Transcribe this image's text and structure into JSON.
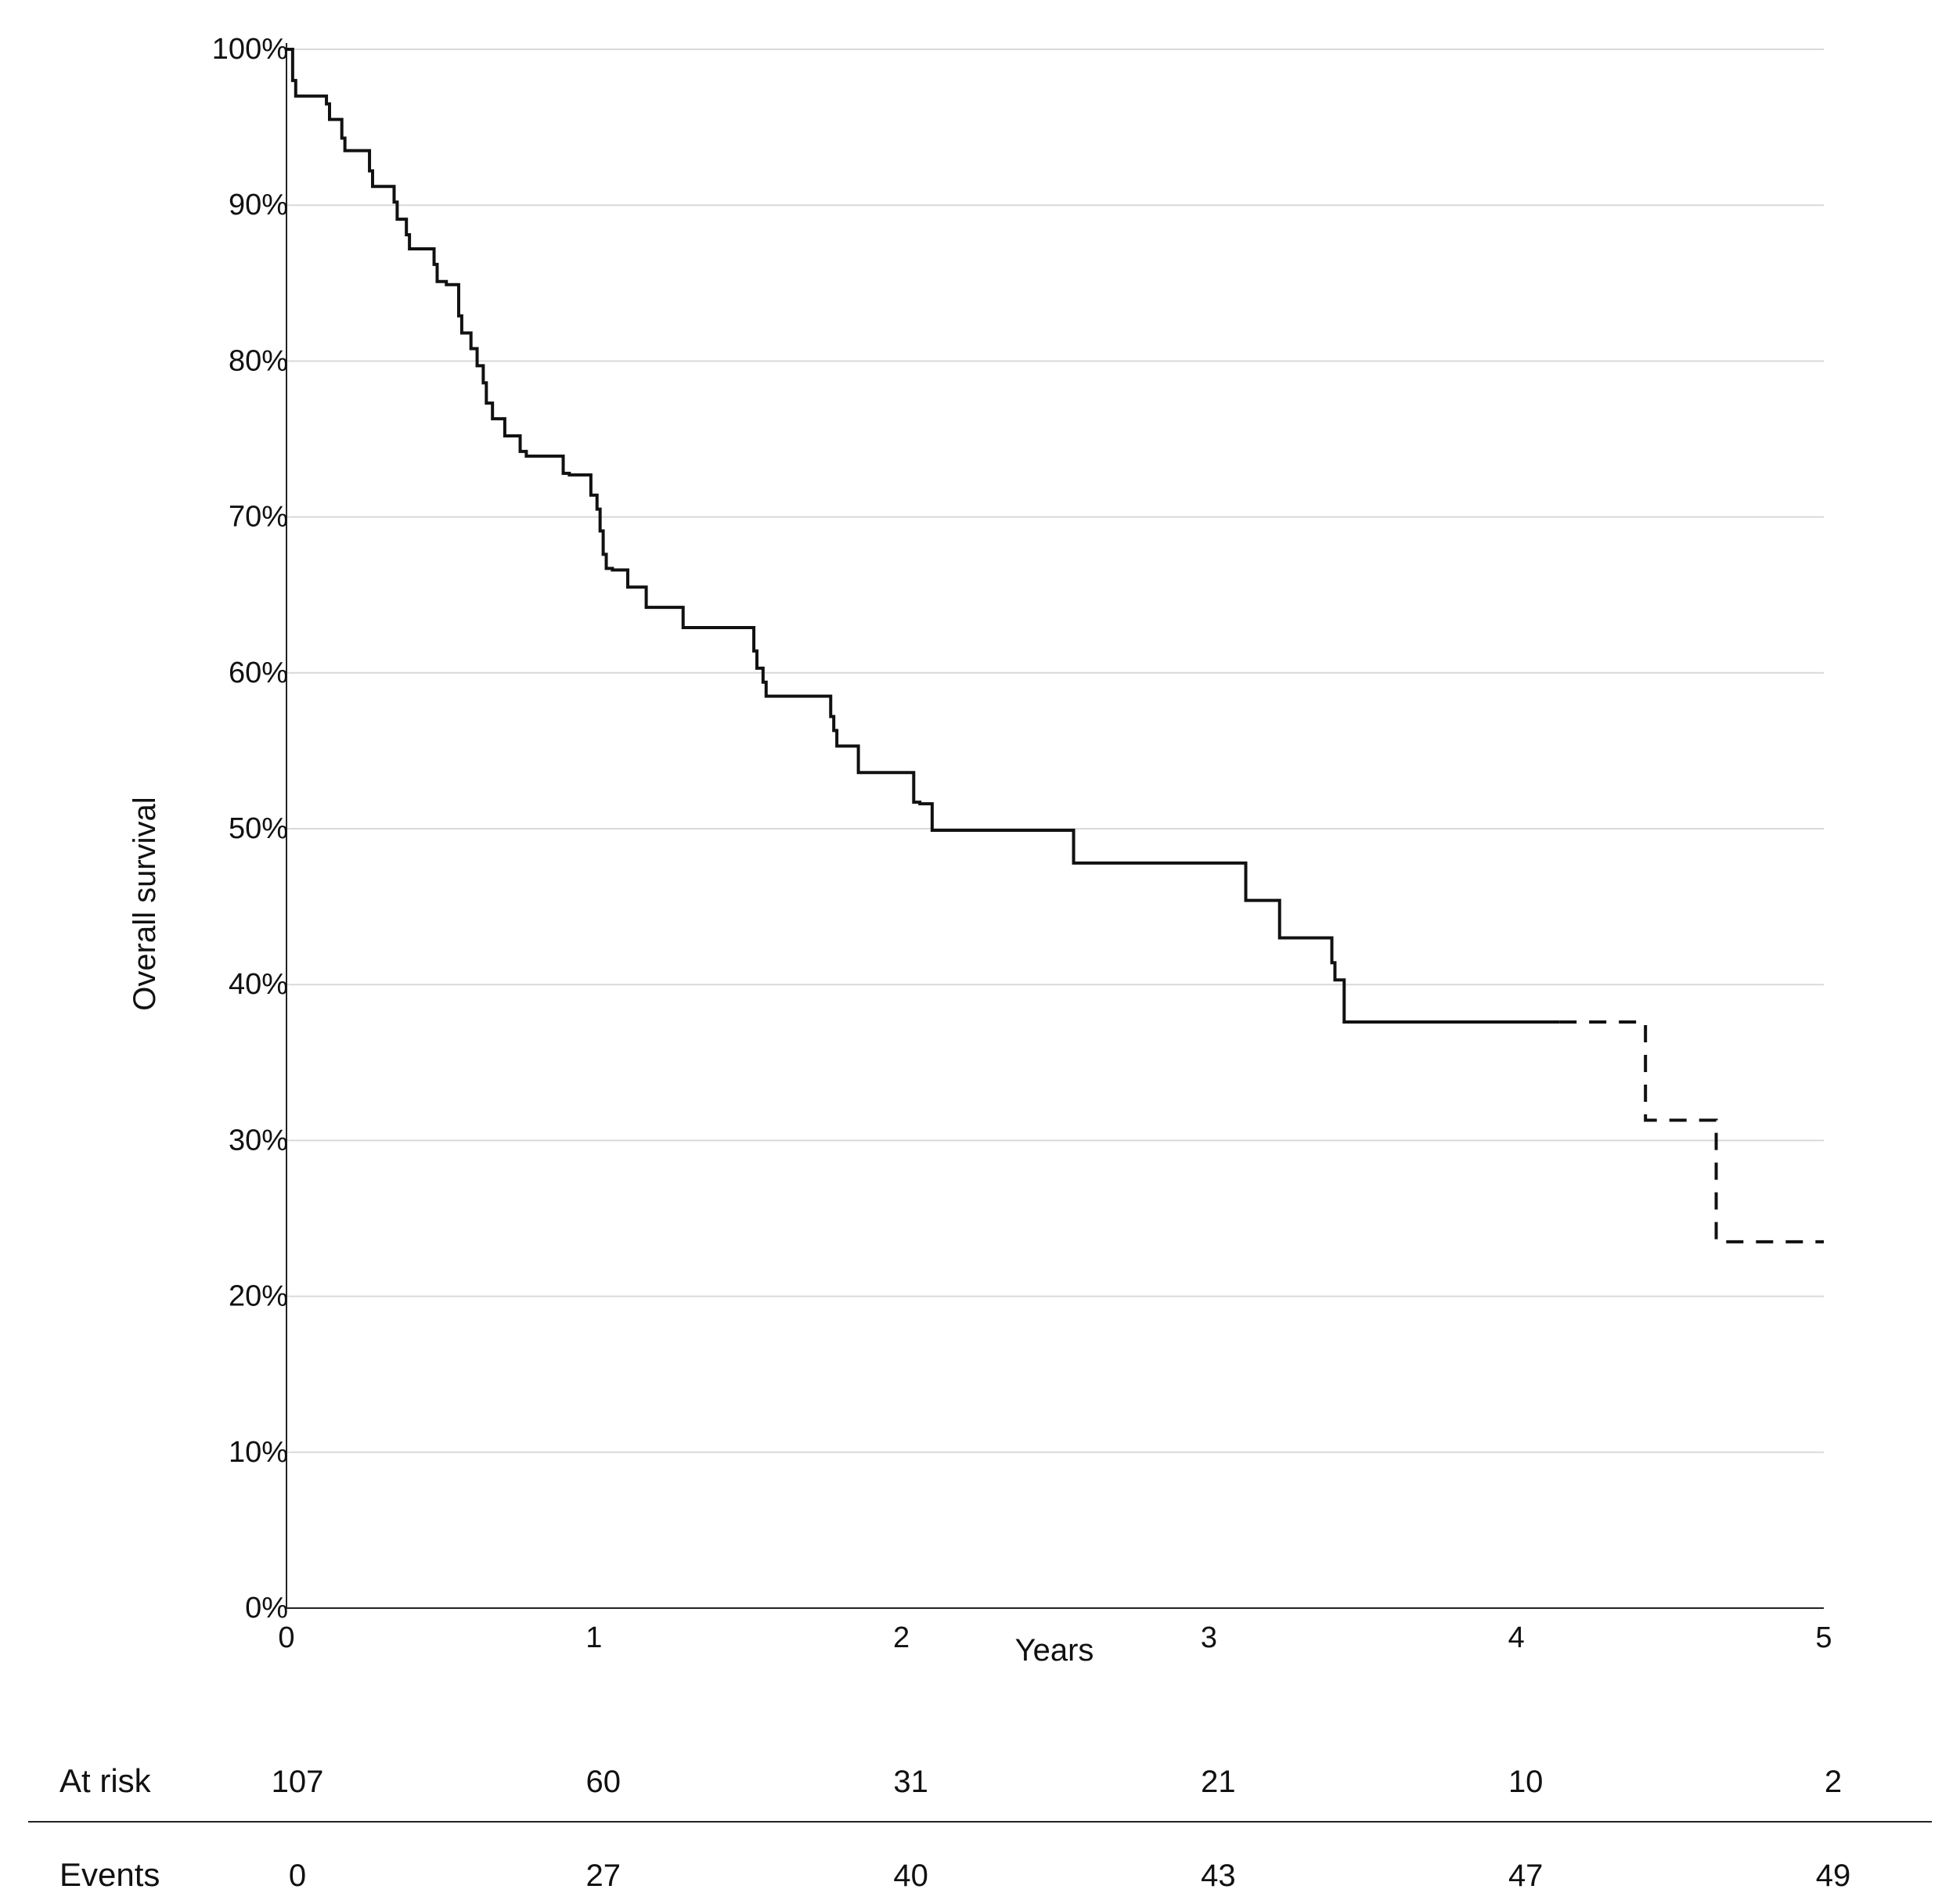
{
  "chart_data": {
    "type": "line",
    "title": "",
    "xlabel": "Years",
    "ylabel": "Overall survival",
    "xlim": [
      0,
      5
    ],
    "ylim": [
      0,
      100
    ],
    "x_ticks": [
      0,
      1,
      2,
      3,
      4,
      5
    ],
    "x_tick_labels": [
      "0",
      "1",
      "2",
      "3",
      "4",
      "5"
    ],
    "y_ticks": [
      0,
      10,
      20,
      30,
      40,
      50,
      60,
      70,
      80,
      90,
      100
    ],
    "y_tick_labels": [
      "0%",
      "10%",
      "20%",
      "30%",
      "40%",
      "50%",
      "60%",
      "70%",
      "80%",
      "90%",
      "100%"
    ],
    "grid": "horizontal",
    "legend": "none",
    "line_color": "#111111",
    "grid_color": "#d9d9d9",
    "series": [
      {
        "style": "solid",
        "step": true,
        "x": [
          0,
          0.02,
          0.03,
          0.13,
          0.14,
          0.18,
          0.19,
          0.27,
          0.28,
          0.35,
          0.36,
          0.39,
          0.4,
          0.48,
          0.49,
          0.52,
          0.56,
          0.57,
          0.6,
          0.62,
          0.64,
          0.65,
          0.67,
          0.71,
          0.76,
          0.78,
          0.9,
          0.92,
          0.99,
          1.01,
          1.02,
          1.03,
          1.04,
          1.06,
          1.11,
          1.17,
          1.29,
          1.52,
          1.53,
          1.55,
          1.56,
          1.77,
          1.78,
          1.79,
          1.86,
          2.04,
          2.06,
          2.1,
          2.56,
          3.12,
          3.23,
          3.4,
          3.41,
          3.44,
          4.14
        ],
        "y": [
          100,
          98,
          97,
          96.5,
          95.5,
          94.3,
          93.5,
          92.2,
          91.2,
          90.2,
          89.1,
          88.1,
          87.2,
          86.2,
          85.1,
          84.9,
          82.9,
          81.8,
          80.8,
          79.7,
          78.6,
          77.3,
          76.3,
          75.2,
          74.2,
          73.9,
          72.8,
          72.7,
          71.4,
          70.5,
          69.1,
          67.6,
          66.7,
          66.6,
          65.5,
          64.2,
          62.9,
          61.4,
          60.3,
          59.4,
          58.5,
          57.2,
          56.3,
          55.3,
          53.6,
          51.7,
          51.6,
          49.9,
          47.8,
          45.4,
          43.0,
          41.4,
          40.3,
          37.6,
          37.6
        ]
      },
      {
        "style": "dashed",
        "step": true,
        "x": [
          4.14,
          4.42,
          4.65,
          5.0
        ],
        "y": [
          37.6,
          31.3,
          23.5,
          23.5
        ]
      }
    ],
    "risk_table": {
      "rows": [
        {
          "label": "At risk",
          "values": [
            "107",
            "60",
            "31",
            "21",
            "10",
            "2"
          ]
        },
        {
          "label": "Events",
          "values": [
            "0",
            "27",
            "40",
            "43",
            "47",
            "49"
          ]
        }
      ]
    }
  }
}
